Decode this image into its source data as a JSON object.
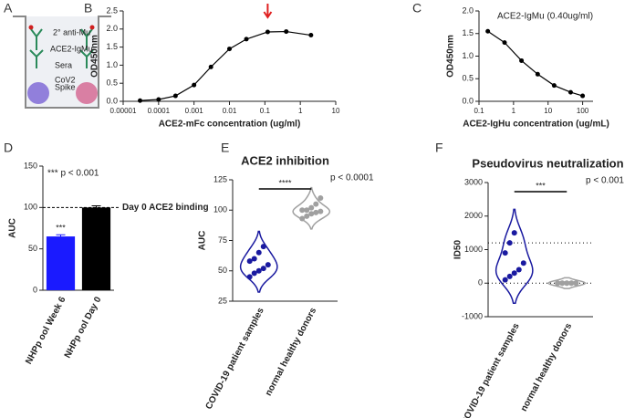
{
  "diagram": {
    "panel": "A",
    "labels": [
      "2° anti-Mu",
      "ACE2-IgMu",
      "Sera",
      "CoV2",
      "Spike"
    ]
  },
  "chart_data": [
    {
      "panel": "B",
      "type": "line",
      "xscale": "log",
      "x": [
        3e-05,
        0.0001,
        0.0003,
        0.001,
        0.003,
        0.01,
        0.03,
        0.12,
        0.4,
        2
      ],
      "values": [
        0.02,
        0.05,
        0.15,
        0.45,
        0.95,
        1.45,
        1.72,
        1.92,
        1.93,
        1.83
      ],
      "color": "#000000",
      "xlim": [
        1e-05,
        10
      ],
      "xticks": [
        1e-05,
        0.0001,
        0.001,
        0.01,
        0.1,
        1,
        10
      ],
      "ylim": [
        0,
        2.5
      ],
      "yticks": [
        {
          "value": 0,
          "label": "0.0"
        },
        {
          "value": 0.5,
          "label": "0.5"
        },
        {
          "value": 1,
          "label": "1.0"
        },
        {
          "value": 1.5,
          "label": "1.5"
        },
        {
          "value": 2,
          "label": "2.0"
        },
        {
          "value": 2.5,
          "label": "2.5"
        }
      ],
      "xlabel": "ACE2-mFc concentration (ug/ml)",
      "ylabel": "OD450nm",
      "arrow_x": 0.12,
      "arrow_color": "#e02020"
    },
    {
      "panel": "C",
      "type": "line",
      "xscale": "log",
      "x": [
        0.18,
        0.55,
        1.7,
        5,
        15,
        45,
        100
      ],
      "values": [
        1.55,
        1.3,
        0.9,
        0.6,
        0.35,
        0.2,
        0.12
      ],
      "color": "#000000",
      "xlim": [
        0.1,
        200
      ],
      "xticks": [
        0.1,
        1,
        10,
        100
      ],
      "ylim": [
        0,
        2
      ],
      "yticks": [
        {
          "value": 0,
          "label": "0.0"
        },
        {
          "value": 0.5,
          "label": "0.5"
        },
        {
          "value": 1,
          "label": "1.0"
        },
        {
          "value": 1.5,
          "label": "1.5"
        },
        {
          "value": 2,
          "label": "2.0"
        }
      ],
      "xlabel": "ACE2-IgHu concentration (ug/mL)",
      "ylabel": "OD450nm",
      "annotation": "ACE2-IgMu (0.40ug/ml)"
    },
    {
      "panel": "D",
      "type": "bar",
      "categories": [
        "NHPp ool Week 6",
        "NHPp ool Day 0"
      ],
      "values": [
        65,
        100
      ],
      "errors": [
        2,
        2
      ],
      "colors": [
        "#1a1aff",
        "#000000"
      ],
      "ylim": [
        0,
        150
      ],
      "yticks": [
        0,
        50,
        100,
        150
      ],
      "ylabel": "AUC",
      "annotation": "*** p < 0.001",
      "bar_marks": [
        "***",
        null
      ],
      "reference_line": 100,
      "reference_label": "Day 0 ACE2 binding"
    },
    {
      "panel": "E",
      "type": "violin",
      "title": "ACE2 inhibition",
      "categories": [
        "COVID-19 patient samples",
        "normal healthy donors"
      ],
      "groups": [
        [
          45,
          48,
          50,
          52,
          55,
          58,
          60,
          65,
          70
        ],
        [
          93,
          95,
          97,
          98,
          99,
          100,
          100,
          102,
          105,
          110
        ]
      ],
      "colors": [
        "#1a1aa0",
        "#a0a0a0"
      ],
      "ylim": [
        25,
        125
      ],
      "yticks": [
        25,
        50,
        75,
        100,
        125
      ],
      "ylabel": "AUC",
      "significance": "****",
      "p_label": "p < 0.0001"
    },
    {
      "panel": "F",
      "type": "violin",
      "title": "Pseudovirus neutralization",
      "categories": [
        "COVID-19 patient samples",
        "normal healthy donors"
      ],
      "groups": [
        [
          100,
          200,
          300,
          400,
          600,
          900,
          1200,
          1500
        ],
        [
          0,
          0,
          0,
          0,
          0,
          0,
          0,
          0,
          0,
          0
        ]
      ],
      "colors": [
        "#1a1aa0",
        "#a0a0a0"
      ],
      "ylim": [
        -1000,
        3000
      ],
      "yticks": [
        -1000,
        0,
        1000,
        2000,
        3000
      ],
      "ylabel": "ID50",
      "significance": "***",
      "p_label": "p < 0.001",
      "reference_lines": [
        0,
        1200
      ]
    }
  ]
}
